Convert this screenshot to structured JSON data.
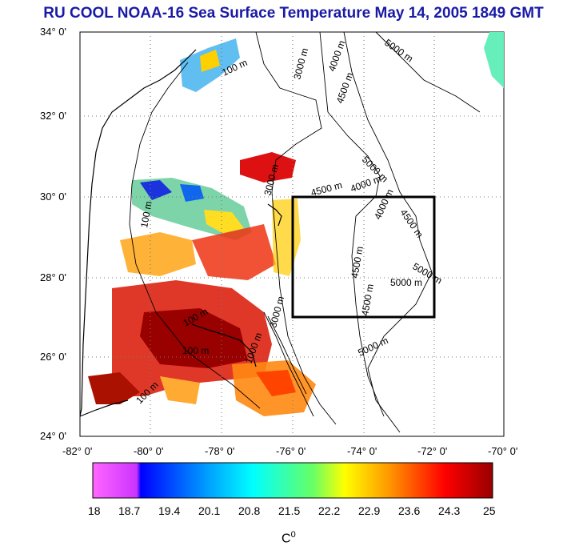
{
  "title": "RU COOL  NOAA-16 Sea Surface Temperature May 14, 2005 1849 GMT",
  "map": {
    "lat_labels": [
      "34° 0'",
      "32° 0'",
      "30° 0'",
      "28° 0'",
      "26° 0'",
      "24° 0'"
    ],
    "lon_labels": [
      "-82° 0'",
      "-80° 0'",
      "-78° 0'",
      "-76° 0'",
      "-74° 0'",
      "-72° 0'",
      "-70° 0'"
    ],
    "lat_range": [
      24,
      34
    ],
    "lon_range": [
      -82,
      -70
    ],
    "grid": "dotted",
    "contour_labels": [
      "100 m",
      "1000 m",
      "3000 m",
      "4000 m",
      "4500 m",
      "5000 m"
    ],
    "study_box": {
      "lon": [
        -76,
        -72
      ],
      "lat": [
        27,
        30
      ]
    }
  },
  "colorbar": {
    "ticks": [
      "18",
      "18.7",
      "19.4",
      "20.1",
      "20.8",
      "21.5",
      "22.2",
      "22.9",
      "23.6",
      "24.3",
      "25"
    ],
    "range": [
      18,
      25
    ],
    "unit": "C",
    "unit_sup": "0",
    "colors": [
      "#ff66ff",
      "#cc33ff",
      "#0000ff",
      "#0099ff",
      "#00ffff",
      "#66ff66",
      "#ffff00",
      "#ff9900",
      "#ff0000",
      "#990000"
    ]
  }
}
